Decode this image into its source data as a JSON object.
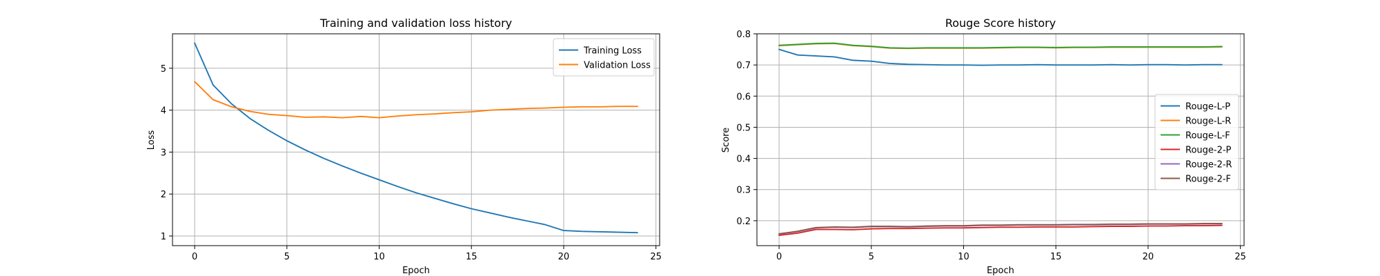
{
  "chart_data": [
    {
      "type": "line",
      "title": "Training and validation loss history",
      "xlabel": "Epoch",
      "ylabel": "Loss",
      "xlim": [
        -1.2,
        25.2
      ],
      "ylim": [
        0.77,
        5.82
      ],
      "xticks": [
        0,
        5,
        10,
        15,
        20,
        25
      ],
      "yticks": [
        1,
        2,
        3,
        4,
        5
      ],
      "grid": true,
      "legend": "top-right",
      "x": [
        0,
        1,
        2,
        3,
        4,
        5,
        6,
        7,
        8,
        9,
        10,
        11,
        12,
        13,
        14,
        15,
        16,
        17,
        18,
        19,
        20,
        21,
        22,
        23,
        24
      ],
      "series": [
        {
          "name": "Training Loss",
          "color": "#1f77b4",
          "values": [
            5.6,
            4.6,
            4.15,
            3.8,
            3.52,
            3.27,
            3.05,
            2.85,
            2.67,
            2.5,
            2.34,
            2.18,
            2.03,
            1.9,
            1.77,
            1.65,
            1.55,
            1.45,
            1.36,
            1.27,
            1.13,
            1.11,
            1.1,
            1.09,
            1.08
          ]
        },
        {
          "name": "Validation Loss",
          "color": "#ff7f0e",
          "values": [
            4.68,
            4.25,
            4.08,
            3.97,
            3.9,
            3.87,
            3.83,
            3.84,
            3.82,
            3.85,
            3.82,
            3.86,
            3.89,
            3.91,
            3.94,
            3.96,
            4.0,
            4.02,
            4.04,
            4.05,
            4.07,
            4.08,
            4.08,
            4.09,
            4.09
          ]
        }
      ]
    },
    {
      "type": "line",
      "title": "Rouge Score history",
      "xlabel": "Epoch",
      "ylabel": "Score",
      "xlim": [
        -1.2,
        25.2
      ],
      "ylim": [
        0.12,
        0.8
      ],
      "xticks": [
        0,
        5,
        10,
        15,
        20,
        25
      ],
      "yticks": [
        0.2,
        0.3,
        0.4,
        0.5,
        0.6,
        0.7,
        0.8
      ],
      "grid": true,
      "legend": "center-right",
      "x": [
        0,
        1,
        2,
        3,
        4,
        5,
        6,
        7,
        8,
        9,
        10,
        11,
        12,
        13,
        14,
        15,
        16,
        17,
        18,
        19,
        20,
        21,
        22,
        23,
        24
      ],
      "series": [
        {
          "name": "Rouge-L-P",
          "color": "#1f77b4",
          "values": [
            0.75,
            0.732,
            0.729,
            0.726,
            0.715,
            0.712,
            0.705,
            0.702,
            0.701,
            0.7,
            0.7,
            0.699,
            0.7,
            0.7,
            0.701,
            0.7,
            0.7,
            0.7,
            0.701,
            0.7,
            0.701,
            0.701,
            0.7,
            0.701,
            0.701
          ]
        },
        {
          "name": "Rouge-L-R",
          "color": "#ff7f0e",
          "values": [
            0.762,
            0.765,
            0.768,
            0.769,
            0.762,
            0.759,
            0.754,
            0.753,
            0.754,
            0.754,
            0.754,
            0.754,
            0.755,
            0.756,
            0.756,
            0.755,
            0.756,
            0.756,
            0.757,
            0.757,
            0.757,
            0.757,
            0.757,
            0.757,
            0.758
          ]
        },
        {
          "name": "Rouge-L-F",
          "color": "#2ca02c",
          "values": [
            0.763,
            0.766,
            0.769,
            0.77,
            0.763,
            0.76,
            0.755,
            0.754,
            0.755,
            0.755,
            0.755,
            0.755,
            0.756,
            0.757,
            0.757,
            0.756,
            0.757,
            0.757,
            0.758,
            0.758,
            0.758,
            0.758,
            0.758,
            0.758,
            0.759
          ]
        },
        {
          "name": "Rouge-2-P",
          "color": "#d62728",
          "values": [
            0.153,
            0.16,
            0.172,
            0.172,
            0.171,
            0.174,
            0.175,
            0.175,
            0.176,
            0.177,
            0.177,
            0.178,
            0.179,
            0.179,
            0.18,
            0.18,
            0.18,
            0.181,
            0.182,
            0.182,
            0.183,
            0.183,
            0.184,
            0.184,
            0.185
          ]
        },
        {
          "name": "Rouge-2-R",
          "color": "#9467bd",
          "values": [
            0.157,
            0.165,
            0.177,
            0.179,
            0.178,
            0.181,
            0.181,
            0.18,
            0.182,
            0.183,
            0.183,
            0.185,
            0.185,
            0.186,
            0.186,
            0.186,
            0.187,
            0.187,
            0.188,
            0.188,
            0.189,
            0.189,
            0.189,
            0.19,
            0.19
          ]
        },
        {
          "name": "Rouge-2-F",
          "color": "#8c564b",
          "values": [
            0.158,
            0.166,
            0.178,
            0.18,
            0.179,
            0.182,
            0.182,
            0.181,
            0.183,
            0.184,
            0.184,
            0.186,
            0.186,
            0.187,
            0.187,
            0.187,
            0.188,
            0.188,
            0.189,
            0.189,
            0.19,
            0.19,
            0.19,
            0.191,
            0.191
          ]
        }
      ]
    }
  ]
}
